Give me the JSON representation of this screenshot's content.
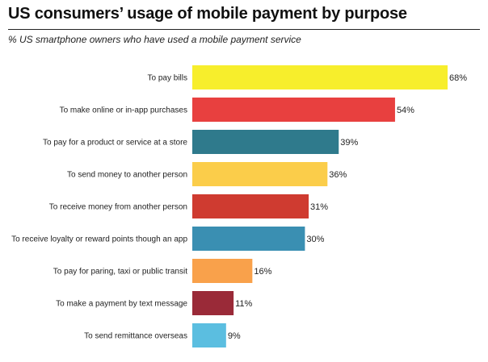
{
  "title": "US consumers’ usage of mobile payment by purpose",
  "subtitle": "% US smartphone owners who have used a mobile payment service",
  "chart_data": {
    "type": "bar",
    "orientation": "horizontal",
    "categories": [
      "To pay bills",
      "To make online or in-app purchases",
      "To pay for a product or service at a store",
      "To send money to another person",
      "To receive money from another person",
      "To receive loyalty or reward points though an app",
      "To pay for paring, taxi or public transit",
      "To make a payment by text message",
      "To send remittance overseas"
    ],
    "values": [
      68,
      54,
      39,
      36,
      31,
      30,
      16,
      11,
      9
    ],
    "value_labels": [
      "68%",
      "54%",
      "39%",
      "36%",
      "31%",
      "30%",
      "16%",
      "11%",
      "9%"
    ],
    "colors": [
      "#f7ee2c",
      "#e8403f",
      "#2f7a8c",
      "#fbcd4a",
      "#cf3b30",
      "#3a8fb2",
      "#f9a14b",
      "#9a2a38",
      "#5bbee0"
    ],
    "xlim": [
      0,
      68
    ],
    "grid": false,
    "legend": "none"
  }
}
